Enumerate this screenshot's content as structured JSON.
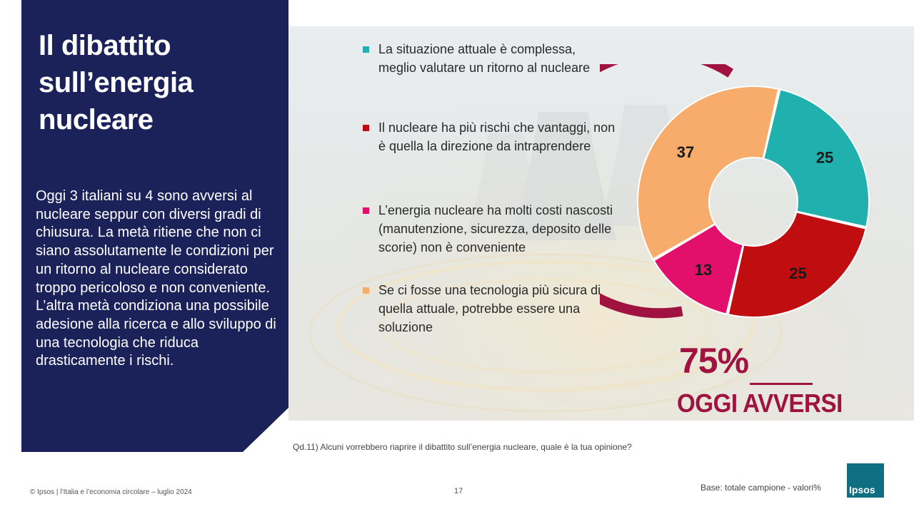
{
  "title": "Il dibattito sull’energia nucleare",
  "summary": "Oggi 3 italiani su 4 sono avversi al nucleare seppur con diversi gradi di chiusura. La metà ritiene che non ci siano assolutamente le condizioni per un ritorno al nucleare considerato troppo pericoloso e non conveniente. L’altra metà condiziona una possibile adesione alla ricerca e allo sviluppo di una tecnologia che riduca drasticamente i rischi.",
  "highlight": {
    "value": "75%",
    "label": "OGGI AVVERSI"
  },
  "question": "Qd.11) Alcuni vorrebbero riaprire il dibattito sull’energia nucleare, quale è la tua opinione?",
  "footer": {
    "copyright": "© Ipsos | l’Italia e l’economia circolare – luglio 2024",
    "page": "17",
    "base": "Base: totale campione - valori%"
  },
  "logo": {
    "text": "Ipsos",
    "color": "#0f6e82"
  },
  "chart_data": {
    "type": "pie",
    "variant": "donut",
    "unit": "%",
    "categories": [
      "La situazione attuale è complessa, meglio valutare un ritorno al nucleare",
      "Il nucleare ha più rischi che vantaggi, non è quella la direzione da intraprendere",
      "L’energia nucleare ha molti costi nascosti (manutenzione, sicurezza, deposito delle scorie) non è conveniente",
      "Se ci fosse una tecnologia più sicura di quella attuale, potrebbe essere una soluzione"
    ],
    "values": [
      25,
      25,
      13,
      37
    ],
    "colors": [
      "#20b0ad",
      "#c00d0f",
      "#e2106a",
      "#f8ac6c"
    ],
    "bracket_color": "#a0123f",
    "bracket_value": "75%",
    "legend_position": "left"
  }
}
